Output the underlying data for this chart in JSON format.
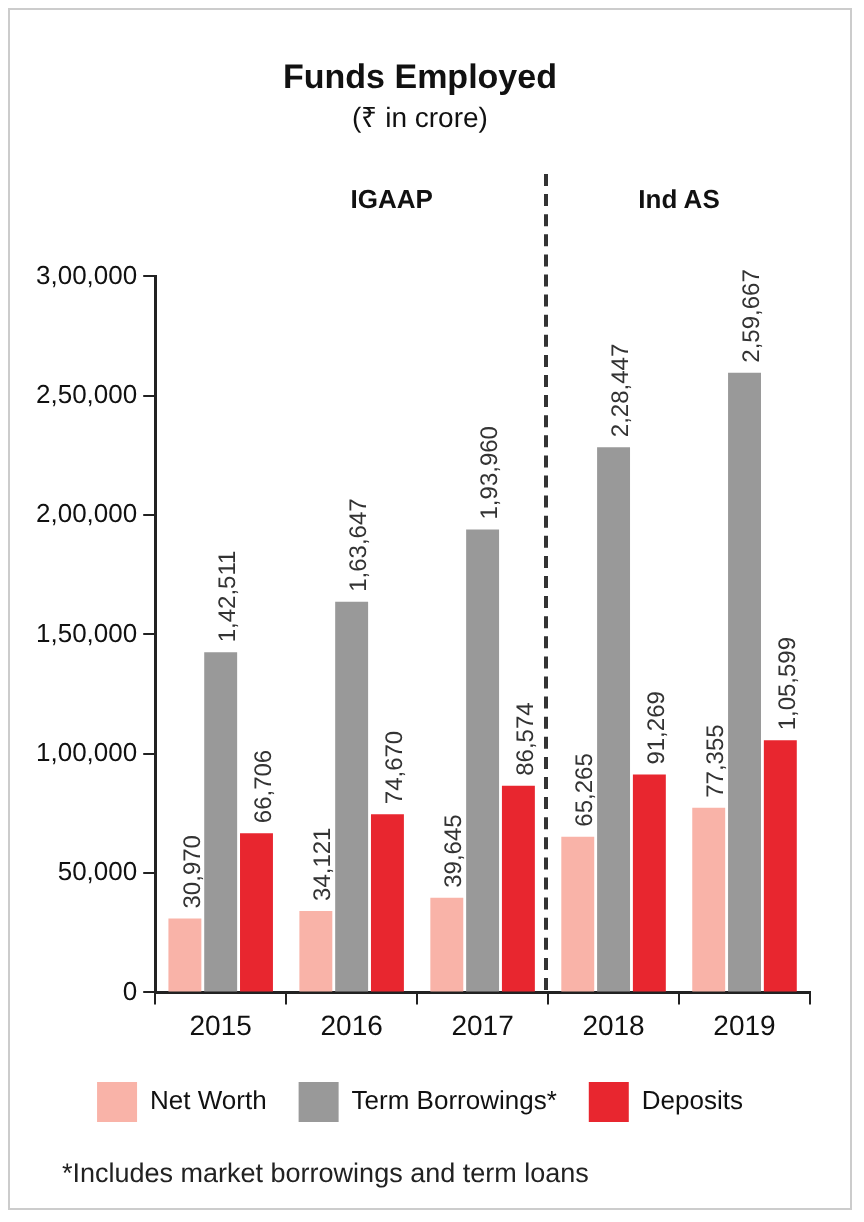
{
  "chart_data": {
    "type": "bar",
    "title": "Funds Employed",
    "subtitle": "(₹ in crore)",
    "categories": [
      "2015",
      "2016",
      "2017",
      "2018",
      "2019"
    ],
    "series": [
      {
        "name": "Net Worth",
        "color": "#f9b3a8",
        "values": [
          30970,
          34121,
          39645,
          65265,
          77355
        ],
        "value_labels": [
          "30,970",
          "34,121",
          "39,645",
          "65,265",
          "77,355"
        ]
      },
      {
        "name": "Term Borrowings*",
        "color": "#999999",
        "values": [
          142511,
          163647,
          193960,
          228447,
          259667
        ],
        "value_labels": [
          "1,42,511",
          "1,63,647",
          "1,93,960",
          "2,28,447",
          "2,59,667"
        ]
      },
      {
        "name": "Deposits",
        "color": "#e8262f",
        "values": [
          66706,
          74670,
          86574,
          91269,
          105599
        ],
        "value_labels": [
          "66,706",
          "74,670",
          "86,574",
          "91,269",
          "1,05,599"
        ]
      }
    ],
    "ylim": [
      0,
      300000
    ],
    "yticks": [
      0,
      {
        "value": 50000,
        "label": "50,000"
      },
      {
        "value": 100000,
        "label": "1,00,000"
      },
      {
        "value": 150000,
        "label": "1,50,000"
      },
      {
        "value": 200000,
        "label": "2,00,000"
      },
      {
        "value": 250000,
        "label": "2,50,000"
      },
      {
        "value": 300000,
        "label": "3,00,000"
      }
    ],
    "annotations": [
      "IGAAP",
      "Ind AS",
      "*Includes market borrowings and term loans"
    ],
    "grid": false,
    "legend": "bottom"
  }
}
